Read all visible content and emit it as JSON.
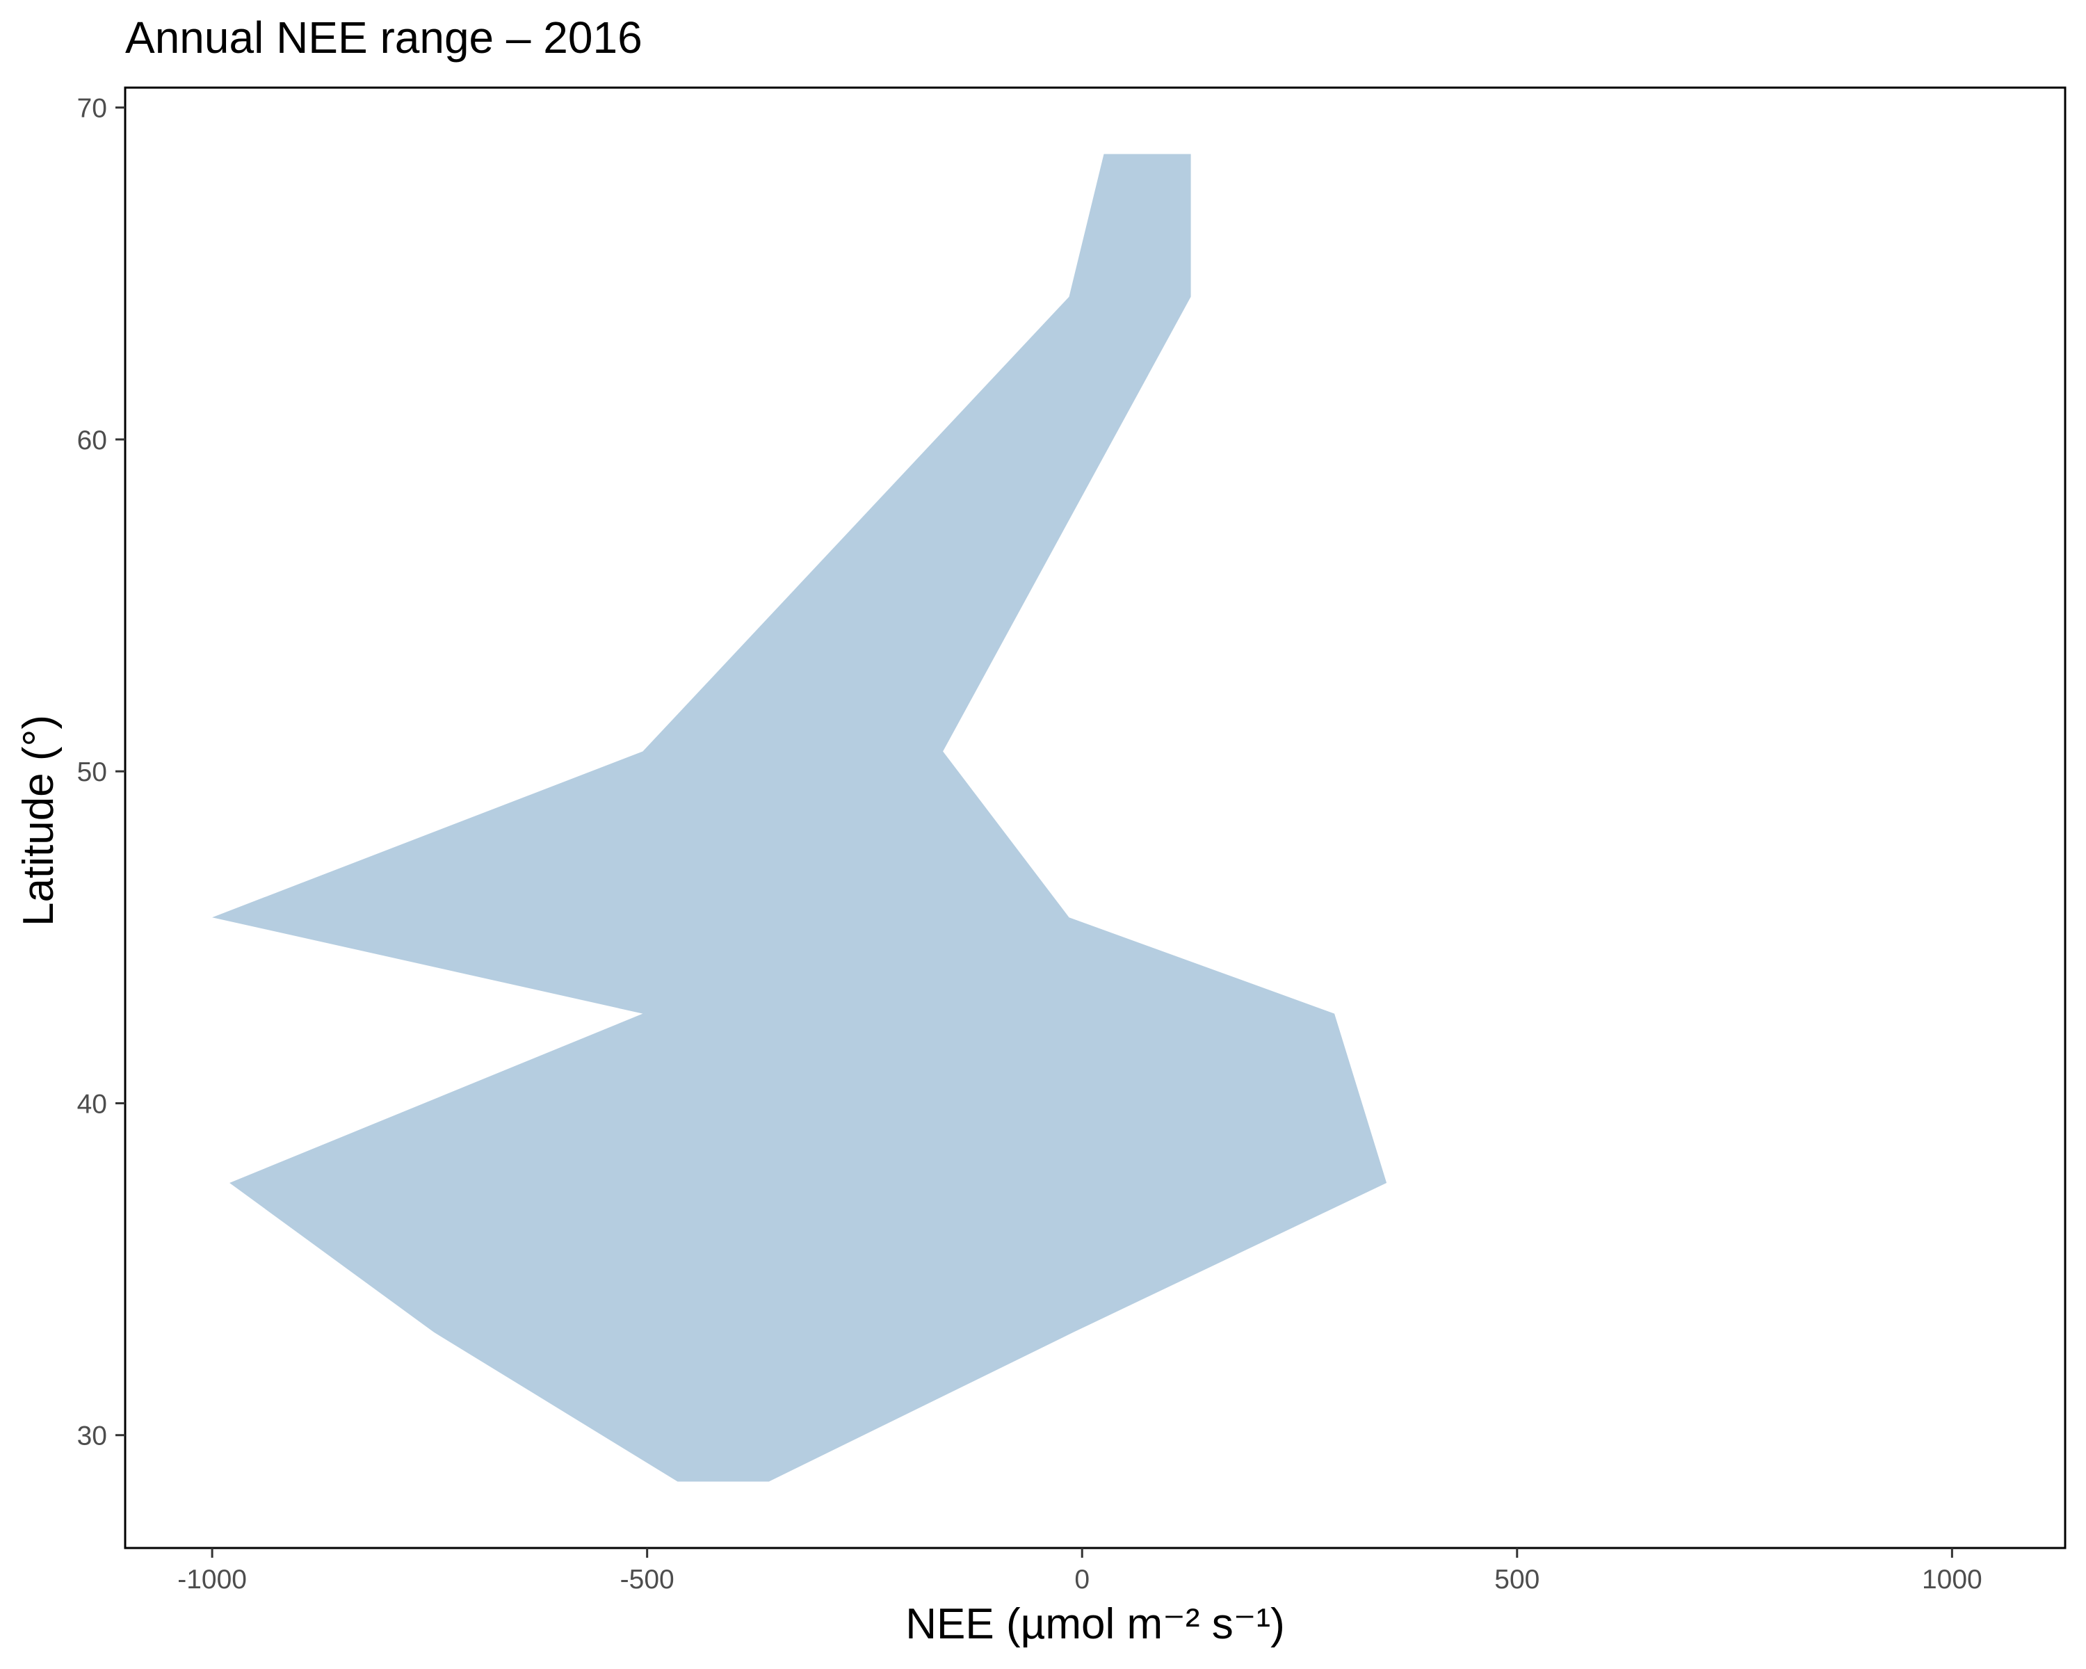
{
  "chart_data": {
    "type": "area",
    "title": "Annual NEE range – 2016",
    "xlabel": "NEE (µmol m⁻² s⁻¹)",
    "ylabel": "Latitude (°)",
    "xlim": [
      -1100,
      1130
    ],
    "ylim": [
      26.6,
      70.6
    ],
    "xticks": [
      -1000,
      -500,
      0,
      500,
      1000
    ],
    "yticks": [
      30,
      40,
      50,
      60,
      70
    ],
    "grid": false,
    "fill_color": "#b5cde0",
    "band": [
      {
        "lat": 28.6,
        "min": -465,
        "max": -360
      },
      {
        "lat": 33.1,
        "min": -745,
        "max": -10
      },
      {
        "lat": 37.6,
        "min": -980,
        "max": 350
      },
      {
        "lat": 42.7,
        "min": -505,
        "max": 290
      },
      {
        "lat": 45.6,
        "min": -1000,
        "max": -15
      },
      {
        "lat": 50.6,
        "min": -505,
        "max": -160
      },
      {
        "lat": 64.3,
        "min": -15,
        "max": 125
      },
      {
        "lat": 68.6,
        "min": 25,
        "max": 125
      }
    ]
  }
}
